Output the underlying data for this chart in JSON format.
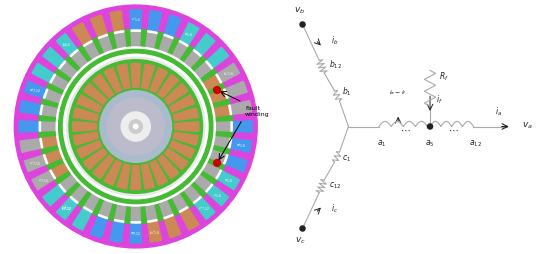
{
  "n_slots": 36,
  "n_rotor_bars": 28,
  "colors": {
    "bg_magenta": "#DD44DD",
    "stator_green": "#44BB33",
    "slot_blue": "#4499EE",
    "slot_cyan": "#44CCCC",
    "slot_gray": "#AAAAAA",
    "slot_brown": "#CC8855",
    "slot_white": "#DDDDDD",
    "rotor_gray": "#AABBCC",
    "inner_gray": "#BBBBCC",
    "shaft_white": "#EEEEEE",
    "fault_red": "#CC0000",
    "circuit_gray": "#AAAAAA",
    "text_dark": "#222222"
  },
  "slot_pattern": [
    "blue_top",
    "blue_top",
    "blue_top",
    "cyan_top",
    "cyan_top",
    "cyan_top",
    "gray_top",
    "gray_top",
    "gray_top",
    "blue_bot",
    "blue_bot",
    "blue_bot",
    "cyan_bot",
    "cyan_bot",
    "cyan_bot",
    "brown_bot",
    "brown_bot",
    "brown_bot",
    "blue_top",
    "blue_top",
    "blue_top",
    "cyan_top",
    "cyan_top",
    "cyan_top",
    "gray_top",
    "gray_top",
    "gray_top",
    "blue_bot",
    "blue_bot",
    "blue_bot",
    "cyan_bot",
    "cyan_bot",
    "cyan_bot",
    "brown_bot",
    "brown_bot",
    "brown_bot"
  ],
  "slot_inner_pattern": [
    "gray",
    "gray",
    "gray",
    "gray",
    "gray",
    "gray",
    "brown",
    "brown",
    "brown",
    "gray",
    "gray",
    "gray",
    "gray",
    "gray",
    "gray",
    "gray",
    "gray",
    "gray",
    "gray",
    "gray",
    "gray",
    "gray",
    "gray",
    "gray",
    "brown",
    "brown",
    "brown",
    "gray",
    "gray",
    "gray",
    "gray",
    "gray",
    "gray",
    "gray",
    "gray",
    "gray"
  ]
}
